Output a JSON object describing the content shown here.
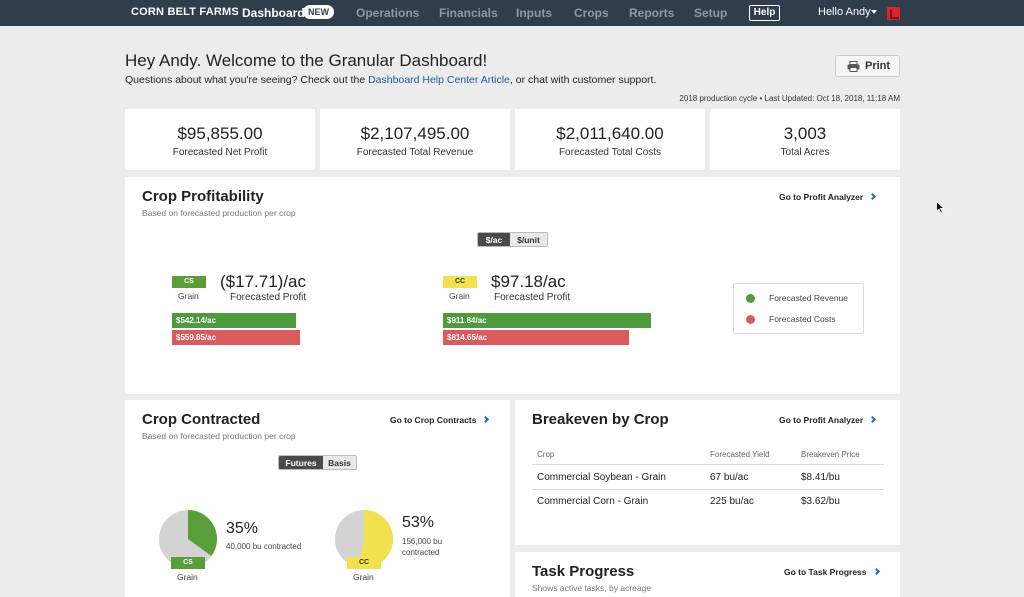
{
  "nav": {
    "brand": "CORN BELT FARMS",
    "items": [
      "Dashboard",
      "Operations",
      "Financials",
      "Inputs",
      "Crops",
      "Reports",
      "Setup"
    ],
    "new_badge": "NEW",
    "help": "Help",
    "user": "Hello Andy"
  },
  "header": {
    "title": "Hey Andy. Welcome to the Granular Dashboard!",
    "sub_before": "Questions about what you're seeing? Check out the ",
    "sub_link": "Dashboard Help Center Article",
    "sub_after": ", or chat with customer support.",
    "print": "Print",
    "cycle": "2018 production cycle  •  Last Updated: Oct 18, 2018, 11:18 AM"
  },
  "stats": [
    {
      "value": "$95,855.00",
      "label": "Forecasted Net Profit"
    },
    {
      "value": "$2,107,495.00",
      "label": "Forecasted Total Revenue"
    },
    {
      "value": "$2,011,640.00",
      "label": "Forecasted Total Costs"
    },
    {
      "value": "3,003",
      "label": "Total Acres"
    }
  ],
  "profitability": {
    "title": "Crop Profitability",
    "subtitle": "Based on forecasted production per crop",
    "goto": "Go to Profit Analyzer",
    "toggle": [
      "$/ac",
      "$/unit"
    ],
    "crops": [
      {
        "code": "CS",
        "type": "Grain",
        "profit": "($17.71)/ac",
        "profit_label": "Forecasted Profit",
        "revenue": "$542.14/ac",
        "costs": "$559.85/ac"
      },
      {
        "code": "CC",
        "type": "Grain",
        "profit": "$97.18/ac",
        "profit_label": "Forecasted Profit",
        "revenue": "$911.84/ac",
        "costs": "$814.65/ac"
      }
    ],
    "legend": [
      "Forecasted Revenue",
      "Forecasted Costs"
    ],
    "colors": {
      "revenue": "#4f9a3c",
      "costs": "#d95a5f"
    }
  },
  "contracted": {
    "title": "Crop Contracted",
    "subtitle": "Based on forecasted production per crop",
    "goto": "Go to Crop Contracts",
    "toggle": [
      "Futures",
      "Basis"
    ],
    "crops": [
      {
        "code": "CS",
        "type": "Grain",
        "pct": "35%",
        "line1": "40,000 bu contracted",
        "line2": "",
        "fraction": 0.35,
        "color": "#5a9e3a"
      },
      {
        "code": "CC",
        "type": "Grain",
        "pct": "53%",
        "line1": "156,000 bu",
        "line2": "contracted",
        "fraction": 0.53,
        "color": "#f2e14d"
      }
    ]
  },
  "breakeven": {
    "title": "Breakeven by Crop",
    "goto": "Go to Profit Analyzer",
    "headers": [
      "Crop",
      "Forecasted Yield",
      "Breakeven Price"
    ],
    "rows": [
      [
        "Commercial Soybean - Grain",
        "67 bu/ac",
        "$8.41/bu"
      ],
      [
        "Commercial Corn - Grain",
        "225 bu/ac",
        "$3.62/bu"
      ]
    ]
  },
  "tasks": {
    "title": "Task Progress",
    "subtitle": "Shows active tasks, by acreage",
    "goto": "Go to Task Progress"
  }
}
